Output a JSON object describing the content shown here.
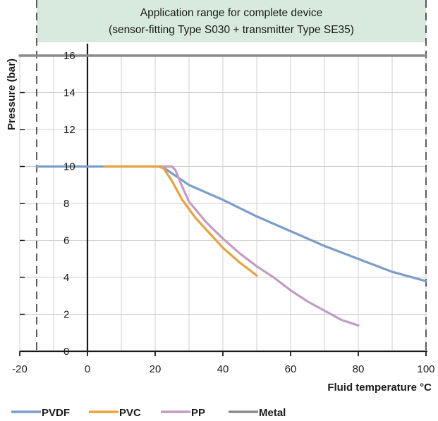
{
  "chart_data": {
    "type": "line",
    "title": "",
    "xlabel": "Fluid temperature °C",
    "ylabel": "Pressure (bar)",
    "xlim": [
      -20,
      100
    ],
    "ylim": [
      0,
      16
    ],
    "xticks": [
      "-20",
      "0",
      "20",
      "40",
      "60",
      "80",
      "100"
    ],
    "yticks": [
      "0",
      "2",
      "4",
      "6",
      "8",
      "10",
      "12",
      "14",
      "16"
    ],
    "grid": true,
    "legend_position": "bottom",
    "annotation": {
      "line1": "Application range for complete device",
      "line2": "(sensor-fitting Type S030 + transmitter Type SE35)",
      "x_range": [
        -15,
        100
      ]
    },
    "series": [
      {
        "name": "PVDF",
        "color": "#7b9cc9",
        "x": [
          -15,
          22,
          30,
          40,
          50,
          60,
          70,
          80,
          90,
          100
        ],
        "y": [
          10,
          10,
          9.0,
          8.2,
          7.3,
          6.5,
          5.7,
          5.0,
          4.3,
          3.8
        ]
      },
      {
        "name": "PVC",
        "color": "#e8a33d",
        "x": [
          5,
          21,
          22.5,
          25,
          28,
          32,
          36,
          40,
          45,
          50
        ],
        "y": [
          10,
          10,
          9.9,
          9.2,
          8.2,
          7.2,
          6.4,
          5.6,
          4.8,
          4.1
        ]
      },
      {
        "name": "PP",
        "color": "#c29cc2",
        "x": [
          22,
          25,
          26,
          28,
          30,
          35,
          40,
          45,
          50,
          55,
          60,
          65,
          70,
          75,
          80
        ],
        "y": [
          10,
          10,
          9.8,
          8.9,
          8.1,
          7.0,
          6.1,
          5.3,
          4.6,
          4.0,
          3.3,
          2.7,
          2.2,
          1.7,
          1.4
        ]
      },
      {
        "name": "Metal",
        "color": "#8a8a8a",
        "x": [
          -20,
          100
        ],
        "y": [
          16,
          16
        ]
      }
    ]
  }
}
